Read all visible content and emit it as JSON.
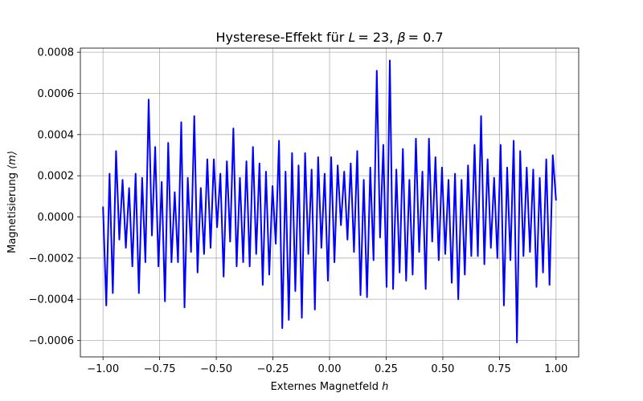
{
  "chart_data": {
    "type": "line",
    "title_prefix": "Hysterese-Effekt für ",
    "title_L": "L",
    "title_L_value": "= 23, ",
    "title_beta": "β",
    "title_beta_value": "= 0.7",
    "xlabel_text": "Externes Magnetfeld ",
    "xlabel_var": "h",
    "ylabel_text": "Magnetisierung ",
    "ylabel_var": "⟨m⟩",
    "xlim": [
      -1.1,
      1.1
    ],
    "ylim": [
      -0.00068,
      0.00082
    ],
    "grid": true,
    "x_ticks": [
      -1.0,
      -0.75,
      -0.5,
      -0.25,
      0.0,
      0.25,
      0.5,
      0.75,
      1.0
    ],
    "x_tick_labels": [
      "−1.00",
      "−0.75",
      "−0.50",
      "−0.25",
      "0.00",
      "0.25",
      "0.50",
      "0.75",
      "1.00"
    ],
    "y_ticks": [
      -0.0006,
      -0.0004,
      -0.0002,
      0.0,
      0.0002,
      0.0004,
      0.0006,
      0.0008
    ],
    "y_tick_labels": [
      "−0.0006",
      "−0.0004",
      "−0.0002",
      "0.0000",
      "0.0002",
      "0.0004",
      "0.0006",
      "0.0008"
    ],
    "series": [
      {
        "color": "#0000ff",
        "x_start": -1.0,
        "x_end": 1.0,
        "values": [
          5e-05,
          -0.00043,
          0.00021,
          -0.00037,
          0.00032,
          -0.00011,
          0.00018,
          -0.00015,
          0.00014,
          -0.00024,
          0.00021,
          -0.00037,
          0.00019,
          -0.00022,
          0.00057,
          -9e-05,
          0.00034,
          -0.00024,
          0.00017,
          -0.00041,
          0.00036,
          -0.00022,
          0.00012,
          -0.00022,
          0.00046,
          -0.00044,
          0.00019,
          -0.00017,
          0.00049,
          -0.00027,
          0.00014,
          -0.00018,
          0.00028,
          -0.00015,
          0.00028,
          -5e-05,
          0.00021,
          -0.00029,
          0.00027,
          -0.00012,
          0.00043,
          -0.00024,
          0.00019,
          -0.00022,
          0.00027,
          -0.00024,
          0.00034,
          -0.00018,
          0.00026,
          -0.00033,
          0.00022,
          -0.00028,
          0.00015,
          -0.00013,
          0.00037,
          -0.00054,
          0.00022,
          -0.0005,
          0.00031,
          -0.00036,
          0.00025,
          -0.00049,
          0.00031,
          -0.00018,
          0.00023,
          -0.00045,
          0.00029,
          -0.00015,
          0.00021,
          -0.00031,
          0.00029,
          -0.00022,
          0.00025,
          -4e-05,
          0.00022,
          -0.00011,
          0.00026,
          -0.00017,
          0.00032,
          -0.00038,
          0.00018,
          -0.00039,
          0.00024,
          -0.00021,
          0.00071,
          -0.0001,
          0.00035,
          -0.00034,
          0.00076,
          -0.00035,
          0.00023,
          -0.00027,
          0.00033,
          -0.00031,
          0.00018,
          -0.00028,
          0.00038,
          -0.00017,
          0.00022,
          -0.00035,
          0.00038,
          -0.00012,
          0.00029,
          -0.00021,
          0.00024,
          -0.00018,
          0.00018,
          -0.00032,
          0.00021,
          -0.0004,
          0.00018,
          -0.00028,
          0.00025,
          -0.00019,
          0.00035,
          -0.00019,
          0.00049,
          -0.00023,
          0.00028,
          -0.00015,
          0.00019,
          -0.0002,
          0.00035,
          -0.00043,
          0.00024,
          -0.00021,
          0.00037,
          -0.00061,
          0.00032,
          -0.00019,
          0.00024,
          -0.00017,
          0.00023,
          -0.00034,
          0.00019,
          -0.00027,
          0.00028,
          -0.00033,
          0.0003,
          8e-05
        ]
      }
    ]
  }
}
